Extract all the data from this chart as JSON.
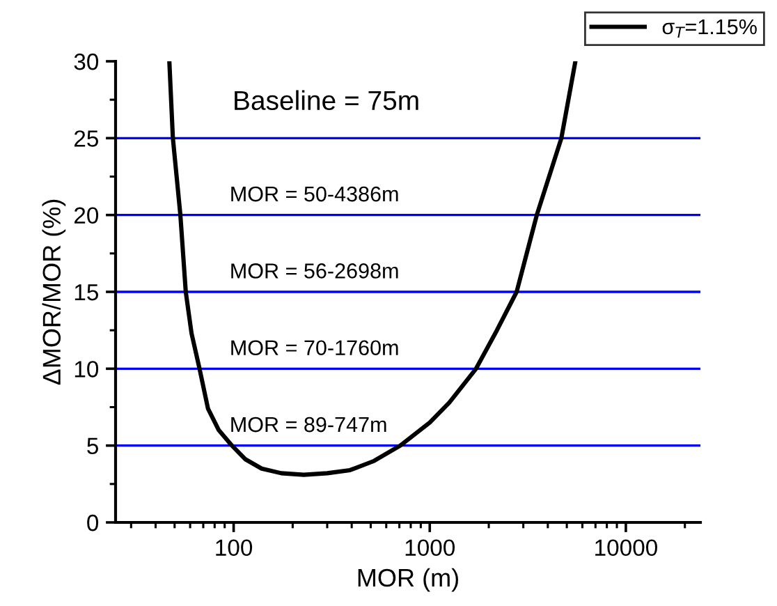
{
  "chart_data": {
    "type": "line",
    "xlabel": "MOR (m)",
    "ylabel": "ΔMOR/MOR (%)",
    "log": "x",
    "xlim": [
      25,
      24000
    ],
    "xticks": [
      100,
      1000,
      10000
    ],
    "ylim": [
      0,
      30
    ],
    "yticks": [
      0,
      5,
      10,
      15,
      20,
      25,
      30
    ],
    "legend": "top right",
    "grid": false,
    "series": [
      {
        "name": "σ$_{T}$=1.15%",
        "color": "#000000",
        "x": [
          47,
          49,
          53.5,
          57,
          61,
          67,
          74,
          84,
          98,
          115,
          139,
          175,
          228,
          300,
          392,
          520,
          708,
          1000,
          1259,
          1722,
          2200,
          2774,
          3515,
          4690,
          5530
        ],
        "values": [
          30,
          25,
          20,
          15,
          12.3,
          10,
          7.4,
          6,
          5,
          4.1,
          3.5,
          3.2,
          3.1,
          3.2,
          3.4,
          4,
          5,
          6.5,
          7.8,
          10,
          12.5,
          15,
          20,
          25,
          30
        ]
      }
    ],
    "ref_lines": [
      {
        "axis": "y",
        "value": 25,
        "color": "#0000ff"
      },
      {
        "axis": "y",
        "value": 20,
        "color": "#0000ff"
      },
      {
        "axis": "y",
        "value": 15,
        "color": "#0000ff"
      },
      {
        "axis": "y",
        "value": 10,
        "color": "#0000ff"
      },
      {
        "axis": "y",
        "value": 5,
        "color": "#0000ff"
      }
    ],
    "annotations": [
      "Baseline = 75m",
      "MOR = 50-4386m",
      "MOR = 56-2698m",
      "MOR = 70-1760m",
      "MOR = 89-747m"
    ]
  }
}
